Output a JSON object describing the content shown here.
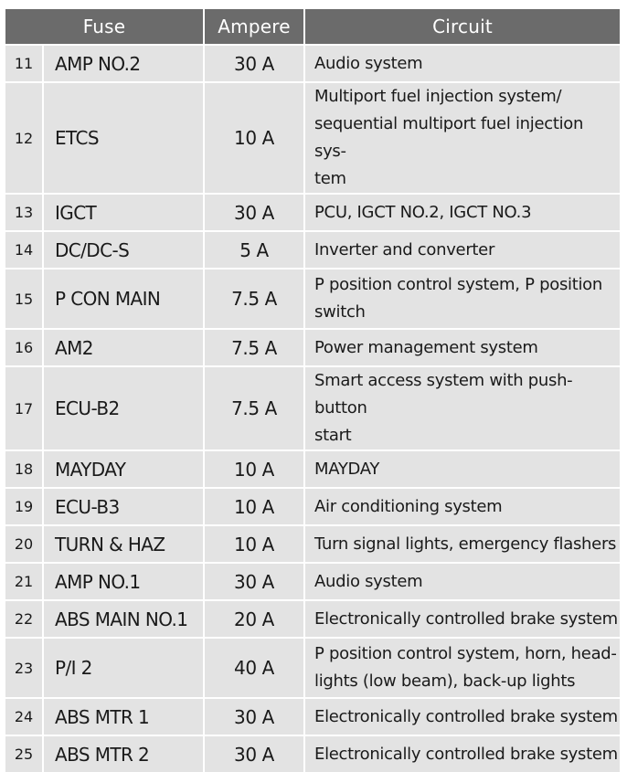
{
  "headers": {
    "fuse": "Fuse",
    "ampere": "Ampere",
    "circuit": "Circuit"
  },
  "rows": [
    {
      "num": "11",
      "name": "AMP NO.2",
      "ampere": "30 A",
      "circuit": "Audio system"
    },
    {
      "num": "12",
      "name": "ETCS",
      "ampere": "10 A",
      "circuit_lines": [
        "Multiport fuel injection system/",
        "sequential multiport fuel injection sys-",
        "tem"
      ]
    },
    {
      "num": "13",
      "name": "IGCT",
      "ampere": "30 A",
      "circuit": "PCU, IGCT NO.2, IGCT NO.3"
    },
    {
      "num": "14",
      "name": "DC/DC-S",
      "ampere": "5 A",
      "circuit": "Inverter and converter"
    },
    {
      "num": "15",
      "name": "P CON MAIN",
      "ampere": "7.5 A",
      "circuit_lines": [
        "P position control system, P position",
        "switch"
      ]
    },
    {
      "num": "16",
      "name": "AM2",
      "ampere": "7.5 A",
      "circuit": "Power management system"
    },
    {
      "num": "17",
      "name": "ECU-B2",
      "ampere": "7.5 A",
      "circuit_lines": [
        "Smart access system with push-button",
        "start"
      ]
    },
    {
      "num": "18",
      "name": "MAYDAY",
      "ampere": "10 A",
      "circuit": "MAYDAY"
    },
    {
      "num": "19",
      "name": "ECU-B3",
      "ampere": "10 A",
      "circuit": "Air conditioning system"
    },
    {
      "num": "20",
      "name": "TURN & HAZ",
      "ampere": "10 A",
      "circuit": "Turn signal lights, emergency flashers"
    },
    {
      "num": "21",
      "name": "AMP NO.1",
      "ampere": "30 A",
      "circuit": "Audio system"
    },
    {
      "num": "22",
      "name": "ABS MAIN NO.1",
      "ampere": "20 A",
      "circuit": "Electronically controlled brake system"
    },
    {
      "num": "23",
      "name": "P/I 2",
      "ampere": "40 A",
      "circuit_lines": [
        "P position control system, horn, head-",
        "lights (low beam), back-up lights"
      ]
    },
    {
      "num": "24",
      "name": "ABS MTR 1",
      "ampere": "30 A",
      "circuit": "Electronically controlled brake system"
    },
    {
      "num": "25",
      "name": "ABS MTR 2",
      "ampere": "30 A",
      "circuit": "Electronically controlled brake system"
    }
  ]
}
